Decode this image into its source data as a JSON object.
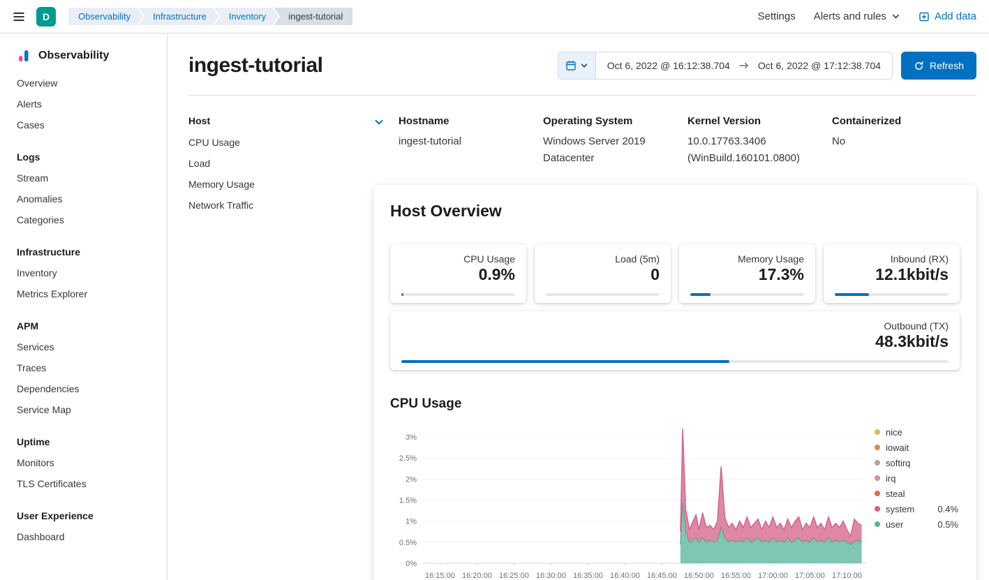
{
  "colors": {
    "logo_bg": "#019b8f",
    "primary": "#0071c2",
    "breadcrumb_link": "#0071c2"
  },
  "topbar": {
    "logo_letter": "D",
    "breadcrumbs": [
      "Observability",
      "Infrastructure",
      "Inventory",
      "ingest-tutorial"
    ],
    "settings": "Settings",
    "alerts_rules": "Alerts and rules",
    "add_data": "Add data"
  },
  "sidebar": {
    "title": "Observability",
    "sections": [
      {
        "header": "",
        "items": [
          "Overview",
          "Alerts",
          "Cases"
        ]
      },
      {
        "header": "Logs",
        "items": [
          "Stream",
          "Anomalies",
          "Categories"
        ]
      },
      {
        "header": "Infrastructure",
        "items": [
          "Inventory",
          "Metrics Explorer"
        ]
      },
      {
        "header": "APM",
        "items": [
          "Services",
          "Traces",
          "Dependencies",
          "Service Map"
        ]
      },
      {
        "header": "Uptime",
        "items": [
          "Monitors",
          "TLS Certificates"
        ]
      },
      {
        "header": "User Experience",
        "items": [
          "Dashboard"
        ]
      }
    ]
  },
  "page": {
    "title": "ingest-tutorial",
    "date_start": "Oct 6, 2022 @ 16:12:38.704",
    "date_end": "Oct 6, 2022 @ 17:12:38.704",
    "refresh_label": "Refresh"
  },
  "subnav": {
    "header": "Host",
    "items": [
      "CPU Usage",
      "Load",
      "Memory Usage",
      "Network Traffic"
    ]
  },
  "metadata": {
    "fields": [
      {
        "label": "Hostname",
        "value": "ingest-tutorial"
      },
      {
        "label": "Operating System",
        "value": "Windows Server 2019 Datacenter"
      },
      {
        "label": "Kernel Version",
        "value": "10.0.17763.3406 (WinBuild.160101.0800)"
      },
      {
        "label": "Containerized",
        "value": "No"
      }
    ]
  },
  "host_overview": {
    "title": "Host Overview",
    "metrics": [
      {
        "label": "CPU Usage",
        "value": "0.9%",
        "bar_pct": 2,
        "full_width": false
      },
      {
        "label": "Load (5m)",
        "value": "0",
        "bar_pct": 0,
        "full_width": false
      },
      {
        "label": "Memory Usage",
        "value": "17.3%",
        "bar_pct": 18,
        "full_width": false
      },
      {
        "label": "Inbound (RX)",
        "value": "12.1kbit/s",
        "bar_pct": 30,
        "full_width": false
      },
      {
        "label": "Outbound (TX)",
        "value": "48.3kbit/s",
        "bar_pct": 60,
        "full_width": true
      }
    ]
  },
  "cpu_section": {
    "title": "CPU Usage",
    "chart_data": {
      "type": "area",
      "stacked": true,
      "grid": false,
      "legend_position": "right",
      "x_unit": "minutes after 16:00 on Oct 6, 2022",
      "x_domain": [
        12.6,
        72.6
      ],
      "ylim": [
        0,
        3.3
      ],
      "y_ticks": [
        {
          "v": 0,
          "label": "0%"
        },
        {
          "v": 0.5,
          "label": "0.5%"
        },
        {
          "v": 1,
          "label": "1%"
        },
        {
          "v": 1.5,
          "label": "1.5%"
        },
        {
          "v": 2,
          "label": "2%"
        },
        {
          "v": 2.5,
          "label": "2.5%"
        },
        {
          "v": 3,
          "label": "3%"
        }
      ],
      "x_ticks": [
        {
          "v": 15,
          "label": "16:15:00"
        },
        {
          "v": 20,
          "label": "16:20:00"
        },
        {
          "v": 25,
          "label": "16:25:00"
        },
        {
          "v": 30,
          "label": "16:30:00"
        },
        {
          "v": 35,
          "label": "16:35:00"
        },
        {
          "v": 40,
          "label": "16:40:00"
        },
        {
          "v": 45,
          "label": "16:45:00"
        },
        {
          "v": 50,
          "label": "16:50:00"
        },
        {
          "v": 55,
          "label": "16:55:00"
        },
        {
          "v": 60,
          "label": "17:00:00"
        },
        {
          "v": 65,
          "label": "17:05:00"
        },
        {
          "v": 70,
          "label": "17:10:00"
        }
      ],
      "x": [
        47.5,
        47.8,
        48.2,
        48.7,
        49.2,
        49.6,
        50.0,
        50.5,
        51.0,
        51.5,
        52.0,
        52.5,
        53.0,
        53.5,
        54.0,
        54.5,
        55.0,
        55.5,
        56.0,
        56.5,
        57.0,
        57.5,
        58.0,
        58.5,
        59.0,
        59.5,
        60.0,
        60.5,
        61.0,
        61.5,
        62.0,
        62.5,
        63.0,
        63.5,
        64.0,
        64.5,
        65.0,
        65.5,
        66.0,
        66.5,
        67.0,
        67.5,
        68.0,
        68.5,
        69.0,
        69.5,
        70.0,
        70.5,
        71.0,
        71.5,
        72.0
      ],
      "series": [
        {
          "name": "user",
          "color": "#54B399",
          "values": [
            0.45,
            1.45,
            0.75,
            0.5,
            0.55,
            0.6,
            0.5,
            0.6,
            0.5,
            0.55,
            0.5,
            0.55,
            0.85,
            0.6,
            0.5,
            0.55,
            0.5,
            0.55,
            0.5,
            0.6,
            0.5,
            0.55,
            0.6,
            0.5,
            0.55,
            0.5,
            0.6,
            0.5,
            0.55,
            0.5,
            0.6,
            0.5,
            0.55,
            0.6,
            0.5,
            0.55,
            0.5,
            0.6,
            0.5,
            0.55,
            0.5,
            0.6,
            0.5,
            0.55,
            0.5,
            0.55,
            0.5,
            0.45,
            0.5,
            0.55,
            0.5
          ]
        },
        {
          "name": "system",
          "color": "#D36086",
          "values": [
            0.3,
            1.75,
            0.55,
            0.3,
            0.45,
            0.55,
            0.3,
            0.6,
            0.35,
            0.35,
            0.3,
            0.45,
            1.45,
            0.5,
            0.35,
            0.4,
            0.3,
            0.45,
            0.35,
            0.5,
            0.35,
            0.4,
            0.45,
            0.3,
            0.45,
            0.35,
            0.5,
            0.35,
            0.4,
            0.3,
            0.45,
            0.35,
            0.45,
            0.5,
            0.3,
            0.4,
            0.35,
            0.5,
            0.35,
            0.4,
            0.3,
            0.5,
            0.35,
            0.4,
            0.35,
            0.45,
            0.3,
            0.2,
            0.55,
            0.4,
            0.4
          ]
        }
      ],
      "legend": [
        {
          "label": "nice",
          "color": "#D6BF57",
          "value": ""
        },
        {
          "label": "iowait",
          "color": "#DA8B45",
          "value": ""
        },
        {
          "label": "softirq",
          "color": "#B9A888",
          "value": ""
        },
        {
          "label": "irq",
          "color": "#CA8EAE",
          "value": ""
        },
        {
          "label": "steal",
          "color": "#E7664C",
          "value": ""
        },
        {
          "label": "system",
          "color": "#D36086",
          "value": "0.4%"
        },
        {
          "label": "user",
          "color": "#54B399",
          "value": "0.5%"
        }
      ]
    }
  }
}
